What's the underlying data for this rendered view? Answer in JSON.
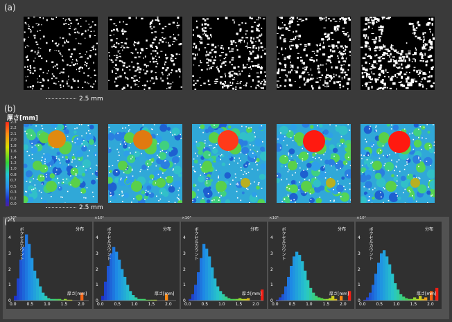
{
  "panels": {
    "a": {
      "label": "(a)",
      "scale": "2.5 mm"
    },
    "b": {
      "label": "(b)",
      "scale": "2.5 mm",
      "colorbar_title": "厚さ[mm]",
      "colorbar_ticks": [
        "2.3",
        "2.2",
        "2.1",
        "2.0",
        "1.8",
        "1.6",
        "1.4",
        "1.2",
        "1.0",
        "0.8",
        "0.7",
        "0.5",
        "0.3",
        "0.2",
        "0.0"
      ]
    },
    "c": {
      "label": "(c)"
    }
  },
  "hist": {
    "multiplier": "×10⁵",
    "ylabel": "ボクセルカウント",
    "legend": "分布",
    "xlabel": "厚さ[mm]",
    "y_ticks": [
      "4",
      "3",
      "2",
      "1",
      "0"
    ]
  },
  "chart_data": [
    {
      "type": "bar",
      "x_ticks": [
        "0.0",
        "0.5",
        "1.0",
        "1.5",
        "2.0"
      ],
      "xlim": [
        0,
        2.2
      ],
      "ylim": [
        0,
        4.4
      ],
      "values": [
        0.3,
        1.4,
        2.6,
        3.4,
        4.2,
        3.6,
        2.7,
        1.9,
        1.4,
        0.9,
        0.5,
        0.3,
        0.15,
        0.1,
        0.1,
        0.1,
        0.1,
        0.05,
        0.1,
        0.05,
        0.05,
        0,
        0,
        0,
        0.5,
        0,
        0
      ]
    },
    {
      "type": "bar",
      "x_ticks": [
        "0.0",
        "0.5",
        "1.0",
        "1.5",
        "2.0"
      ],
      "xlim": [
        0,
        2.2
      ],
      "ylim": [
        0,
        4.4
      ],
      "values": [
        0.3,
        1.2,
        2.2,
        3.0,
        3.4,
        3.1,
        2.6,
        2.0,
        1.5,
        1.0,
        0.6,
        0.35,
        0.2,
        0.1,
        0.1,
        0.1,
        0.05,
        0.05,
        0.05,
        0.05,
        0,
        0,
        0,
        0.4,
        0,
        0,
        0
      ]
    },
    {
      "type": "bar",
      "x_ticks": [
        "0.0",
        "0.5",
        "1.0",
        "1.5",
        "2.0"
      ],
      "xlim": [
        0,
        2.2
      ],
      "ylim": [
        0,
        4.4
      ],
      "values": [
        0.1,
        0.4,
        1.0,
        1.8,
        2.7,
        3.6,
        3.3,
        2.8,
        2.1,
        1.4,
        0.9,
        0.6,
        0.4,
        0.25,
        0.15,
        0.1,
        0.1,
        0.1,
        0.15,
        0.1,
        0.1,
        0.15,
        0,
        0,
        0,
        0,
        0.7
      ]
    },
    {
      "type": "bar",
      "x_ticks": [
        "0.0",
        "0.5",
        "1.0",
        "1.5",
        "2.0"
      ],
      "xlim": [
        0,
        2.2
      ],
      "ylim": [
        0,
        4.4
      ],
      "values": [
        0.05,
        0.2,
        0.4,
        0.9,
        1.5,
        2.2,
        2.8,
        3.1,
        2.9,
        2.5,
        1.9,
        1.3,
        0.8,
        0.5,
        0.3,
        0.2,
        0.15,
        0.1,
        0.1,
        0.15,
        0.3,
        0.1,
        0,
        0.3,
        0,
        0,
        0.6
      ]
    },
    {
      "type": "bar",
      "x_ticks": [
        "0.0",
        "0.5",
        "1.0",
        "1.5",
        "2.0"
      ],
      "xlim": [
        0,
        2.2
      ],
      "ylim": [
        0,
        4.4
      ],
      "values": [
        0.05,
        0.2,
        0.5,
        1.0,
        1.7,
        2.4,
        3.0,
        3.2,
        2.8,
        2.3,
        1.7,
        1.1,
        0.7,
        0.4,
        0.25,
        0.15,
        0.1,
        0.1,
        0.2,
        0.1,
        0.3,
        0.1,
        0.2,
        0,
        0.6,
        0,
        0.8
      ]
    }
  ]
}
